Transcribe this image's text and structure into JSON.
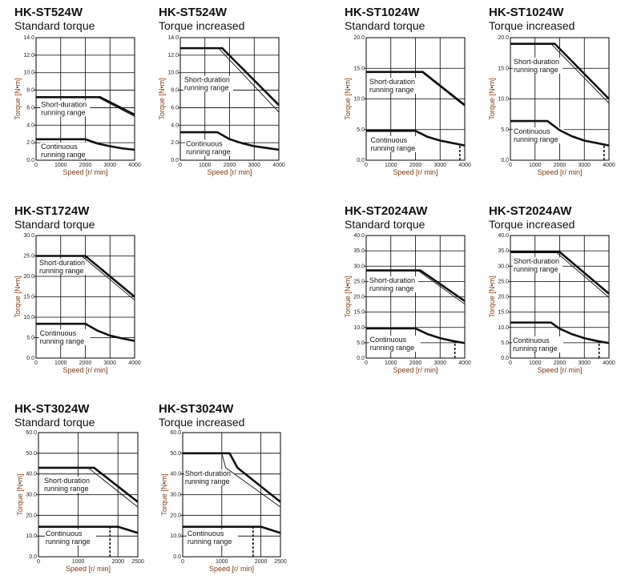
{
  "chart_data": [
    {
      "type": "line",
      "title": "HK-ST524W",
      "subtitle": "Standard torque",
      "xlabel": "Speed [r/ min]",
      "ylabel": "Torque [N•m]",
      "xlim": [
        0,
        4000
      ],
      "ylim": [
        0,
        14
      ],
      "xticks": [
        "0",
        "1000",
        "2000",
        "3000",
        "4000"
      ],
      "yticks": [
        "0.0",
        "2.0",
        "4.0",
        "6.0",
        "8.0",
        "10.0",
        "12.0",
        "14.0"
      ],
      "grid": true,
      "annotations": [
        "Short-duration",
        "running range",
        "Continuous",
        "running range"
      ],
      "series": [
        {
          "style": "thick",
          "x": [
            0,
            2600,
            4000
          ],
          "y": [
            7.2,
            7.2,
            5.2
          ]
        },
        {
          "style": "thin",
          "x": [
            0,
            2500,
            4000
          ],
          "y": [
            7.2,
            7.2,
            5.0
          ]
        },
        {
          "style": "thick",
          "x": [
            0,
            2000,
            2500,
            3000,
            3500,
            4000
          ],
          "y": [
            2.4,
            2.4,
            1.9,
            1.6,
            1.35,
            1.2
          ]
        }
      ]
    },
    {
      "type": "line",
      "title": "HK-ST524W",
      "subtitle": "Torque increased",
      "xlabel": "Speed [r/ min]",
      "ylabel": "Torque [N•m]",
      "xlim": [
        0,
        4000
      ],
      "ylim": [
        0,
        14
      ],
      "xticks": [
        "0",
        "1000",
        "2000",
        "3000",
        "4000"
      ],
      "yticks": [
        "0.0",
        "2.0",
        "4.0",
        "6.0",
        "8.0",
        "10.0",
        "12.0",
        "14.0"
      ],
      "grid": true,
      "annotations": [
        "Short-duration",
        "running range",
        "Continuous",
        "running range"
      ],
      "series": [
        {
          "style": "thick",
          "x": [
            0,
            1700,
            4000
          ],
          "y": [
            12.8,
            12.8,
            6.3
          ]
        },
        {
          "style": "thin",
          "x": [
            0,
            1550,
            4000
          ],
          "y": [
            12.8,
            12.8,
            5.5
          ]
        },
        {
          "style": "thick",
          "x": [
            0,
            1500,
            2000,
            2500,
            3000,
            3500,
            4000
          ],
          "y": [
            3.2,
            3.2,
            2.4,
            1.95,
            1.6,
            1.4,
            1.2
          ]
        }
      ]
    },
    {
      "type": "line",
      "title": "HK-ST1024W",
      "subtitle": "Standard torque",
      "xlabel": "Speed [r/ min]",
      "ylabel": "Torque [N•m]",
      "xlim": [
        0,
        4000
      ],
      "ylim": [
        0,
        20
      ],
      "xticks": [
        "0",
        "1000",
        "2000",
        "3000",
        "4000"
      ],
      "yticks": [
        "0.0",
        "5.0",
        "10.0",
        "15.0",
        "20.0"
      ],
      "grid": true,
      "annotations": [
        "Short-duration",
        "running range",
        "Continuous",
        "running range"
      ],
      "series": [
        {
          "style": "thick",
          "x": [
            0,
            2300,
            4000
          ],
          "y": [
            14.4,
            14.4,
            9.0
          ]
        },
        {
          "style": "thin",
          "x": [
            0,
            2250,
            4000
          ],
          "y": [
            14.4,
            14.4,
            8.8
          ]
        },
        {
          "style": "thick",
          "x": [
            0,
            2000,
            2500,
            3000,
            3500,
            4000
          ],
          "y": [
            4.8,
            4.8,
            3.8,
            3.2,
            2.8,
            2.4
          ]
        },
        {
          "style": "dashed",
          "x": [
            3800,
            3800
          ],
          "y": [
            0,
            2.5
          ]
        }
      ]
    },
    {
      "type": "line",
      "title": "HK-ST1024W",
      "subtitle": "Torque increased",
      "xlabel": "Speed [r/ min]",
      "ylabel": "Torque [N•m]",
      "xlim": [
        0,
        4000
      ],
      "ylim": [
        0,
        20
      ],
      "xticks": [
        "0",
        "1000",
        "2000",
        "3000",
        "4000"
      ],
      "yticks": [
        "0.0",
        "5.0",
        "10.0",
        "15.0",
        "20.0"
      ],
      "grid": true,
      "annotations": [
        "Short-duration",
        "running range",
        "Continuous",
        "running range"
      ],
      "series": [
        {
          "style": "thick",
          "x": [
            0,
            1800,
            4000
          ],
          "y": [
            19,
            19,
            10
          ]
        },
        {
          "style": "thin",
          "x": [
            0,
            1650,
            4000
          ],
          "y": [
            19,
            19,
            9.3
          ]
        },
        {
          "style": "thick",
          "x": [
            0,
            1500,
            2000,
            2500,
            3000,
            3500,
            4000
          ],
          "y": [
            6.4,
            6.4,
            4.9,
            3.9,
            3.2,
            2.8,
            2.4
          ]
        },
        {
          "style": "dashed",
          "x": [
            3800,
            3800
          ],
          "y": [
            0,
            2.5
          ]
        }
      ]
    },
    {
      "type": "line",
      "title": "HK-ST1724W",
      "subtitle": "Standard torque",
      "xlabel": "Speed [r/ min]",
      "ylabel": "Torque [N•m]",
      "xlim": [
        0,
        4000
      ],
      "ylim": [
        0,
        30
      ],
      "xticks": [
        "0",
        "1000",
        "2000",
        "3000",
        "4000"
      ],
      "yticks": [
        "0.0",
        "5.0",
        "10.0",
        "15.0",
        "20.0",
        "25.0",
        "30.0"
      ],
      "grid": true,
      "annotations": [
        "Short-duration",
        "running range",
        "Continuous",
        "running range"
      ],
      "series": [
        {
          "style": "thick",
          "x": [
            0,
            2000,
            4000
          ],
          "y": [
            25,
            25,
            15
          ]
        },
        {
          "style": "thin",
          "x": [
            0,
            1850,
            4000
          ],
          "y": [
            25,
            25,
            14.2
          ]
        },
        {
          "style": "thick",
          "x": [
            0,
            2000,
            2500,
            3000,
            3500,
            4000
          ],
          "y": [
            8.4,
            8.4,
            6.7,
            5.5,
            4.8,
            4.2
          ]
        }
      ]
    },
    {
      "type": "line",
      "title": "HK-ST2024AW",
      "subtitle": "Standard torque",
      "xlabel": "Speed [r/ min]",
      "ylabel": "Torque [N•m]",
      "xlim": [
        0,
        4000
      ],
      "ylim": [
        0,
        40
      ],
      "xticks": [
        "0",
        "1000",
        "2000",
        "3000",
        "4000"
      ],
      "yticks": [
        "0.0",
        "5.0",
        "10.0",
        "15.0",
        "20.0",
        "25.0",
        "30.0",
        "35.0",
        "40.0"
      ],
      "grid": true,
      "annotations": [
        "Short-duration",
        "running range",
        "Continuous",
        "running range"
      ],
      "series": [
        {
          "style": "thick",
          "x": [
            0,
            2200,
            4000
          ],
          "y": [
            28.6,
            28.6,
            18.6
          ]
        },
        {
          "style": "thin",
          "x": [
            0,
            2100,
            4000
          ],
          "y": [
            28.6,
            28.6,
            17.6
          ]
        },
        {
          "style": "thick",
          "x": [
            0,
            2000,
            2500,
            3000,
            3500,
            4000
          ],
          "y": [
            9.7,
            9.7,
            7.8,
            6.5,
            5.6,
            4.9
          ]
        },
        {
          "style": "dashed",
          "x": [
            3600,
            3600
          ],
          "y": [
            0,
            5.3
          ]
        }
      ]
    },
    {
      "type": "line",
      "title": "HK-ST2024AW",
      "subtitle": "Torque increased",
      "xlabel": "Speed [r/ min]",
      "ylabel": "Torque [N•m]",
      "xlim": [
        0,
        4000
      ],
      "ylim": [
        0,
        40
      ],
      "xticks": [
        "0",
        "1000",
        "2000",
        "3000",
        "4000"
      ],
      "yticks": [
        "0.0",
        "5.0",
        "10.0",
        "15.0",
        "20.0",
        "25.0",
        "30.0",
        "35.0",
        "40.0"
      ],
      "grid": true,
      "annotations": [
        "Short-duration",
        "running range",
        "Continuous",
        "running range"
      ],
      "series": [
        {
          "style": "thick",
          "x": [
            0,
            2000,
            4000
          ],
          "y": [
            34.6,
            34.6,
            21
          ]
        },
        {
          "style": "thin",
          "x": [
            0,
            1850,
            4000
          ],
          "y": [
            34.6,
            34.6,
            19.8
          ]
        },
        {
          "style": "thick",
          "x": [
            0,
            1650,
            2000,
            2500,
            3000,
            3500,
            4000
          ],
          "y": [
            11.6,
            11.6,
            9.6,
            7.8,
            6.5,
            5.6,
            4.9
          ]
        },
        {
          "style": "dashed",
          "x": [
            3600,
            3600
          ],
          "y": [
            0,
            5.3
          ]
        }
      ]
    },
    {
      "type": "line",
      "title": "HK-ST3024W",
      "subtitle": "Standard torque",
      "xlabel": "Speed [r/ min]",
      "ylabel": "Torque [N•m]",
      "xlim": [
        0,
        2500
      ],
      "ylim": [
        0,
        60
      ],
      "xticks": [
        "0",
        "1000",
        "2000",
        "2500"
      ],
      "yticks": [
        "0.0",
        "10.0",
        "20.0",
        "30.0",
        "40.0",
        "50.0",
        "60.0"
      ],
      "grid": true,
      "annotations": [
        "Short-duration",
        "running range",
        "Continuous",
        "running range"
      ],
      "series": [
        {
          "style": "thick",
          "x": [
            0,
            1400,
            2500
          ],
          "y": [
            43,
            43,
            26.5
          ]
        },
        {
          "style": "thin",
          "x": [
            0,
            1250,
            2500
          ],
          "y": [
            43,
            43,
            24
          ]
        },
        {
          "style": "thick",
          "x": [
            0,
            2000,
            2500
          ],
          "y": [
            14.5,
            14.5,
            11.5
          ]
        },
        {
          "style": "dashed",
          "x": [
            1800,
            1800
          ],
          "y": [
            0,
            14.5
          ]
        }
      ]
    },
    {
      "type": "line",
      "title": "HK-ST3024W",
      "subtitle": "Torque increased",
      "xlabel": "Speed [r/ min]",
      "ylabel": "Torque [N•m]",
      "xlim": [
        0,
        2500
      ],
      "ylim": [
        0,
        60
      ],
      "xticks": [
        "0",
        "1000",
        "2000",
        "2500"
      ],
      "yticks": [
        "0.0",
        "10.0",
        "20.0",
        "30.0",
        "40.0",
        "50.0",
        "60.0"
      ],
      "grid": true,
      "annotations": [
        "Short-duration",
        "running range",
        "Continuous",
        "running range"
      ],
      "series": [
        {
          "style": "thick",
          "x": [
            0,
            1200,
            1400,
            2500
          ],
          "y": [
            50,
            50,
            43,
            26.5
          ]
        },
        {
          "style": "thin",
          "x": [
            0,
            1000,
            1100,
            2500
          ],
          "y": [
            50,
            50,
            43,
            24
          ]
        },
        {
          "style": "thick",
          "x": [
            0,
            2000,
            2500
          ],
          "y": [
            14.5,
            14.5,
            11.5
          ]
        },
        {
          "style": "dashed",
          "x": [
            1800,
            1800
          ],
          "y": [
            0,
            14.5
          ]
        }
      ]
    }
  ]
}
